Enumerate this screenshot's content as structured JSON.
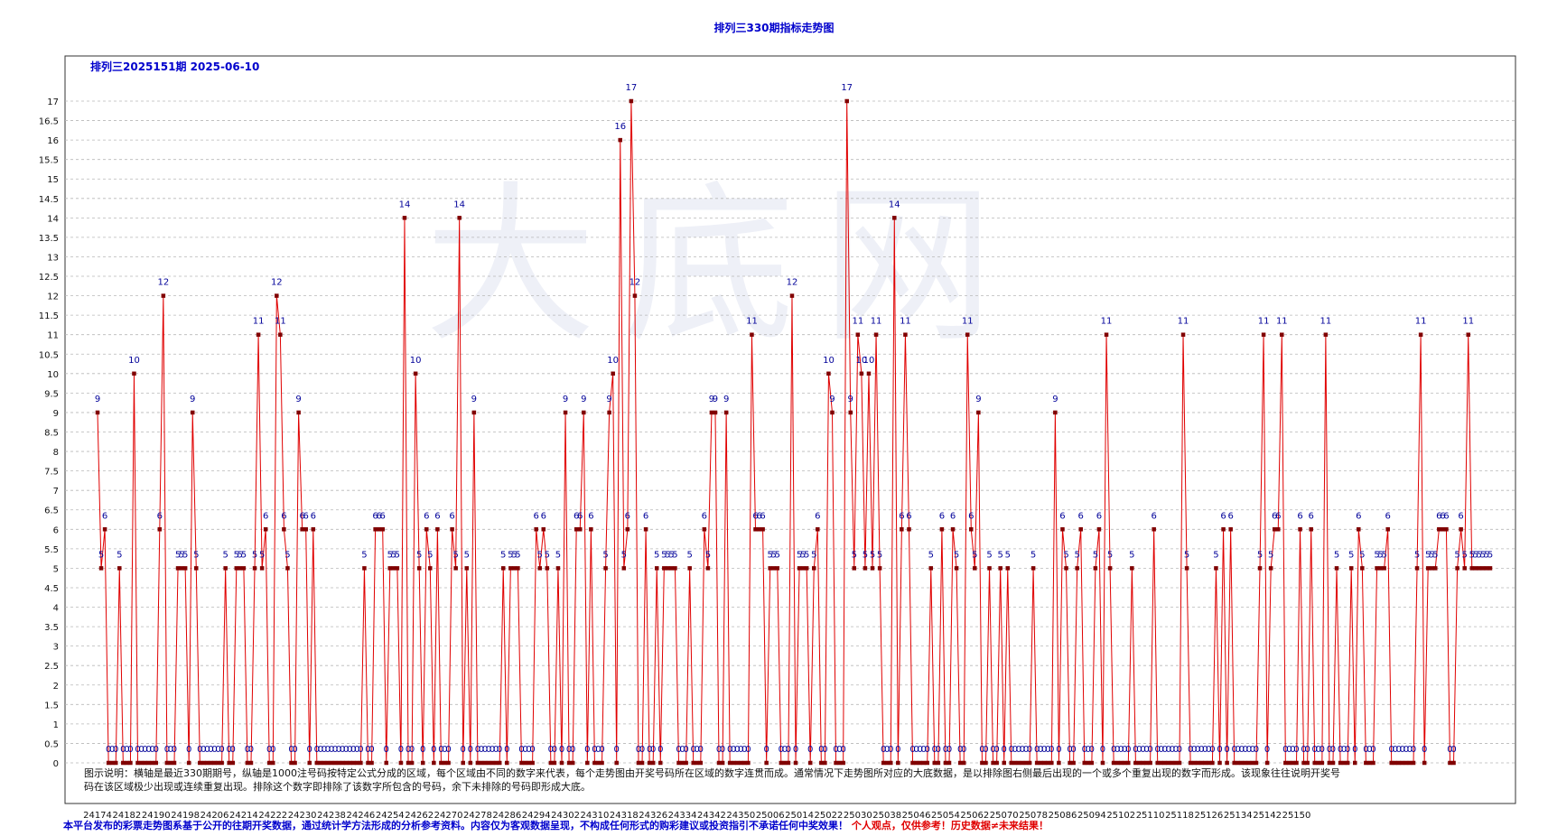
{
  "title": "排列三330期指标走势图",
  "subtitle": "排列三2025151期  2025-06-10",
  "watermark": "大底网",
  "note": "图示说明：横轴是最近330期期号，纵轴是1000注号码按特定公式分成的区域，每个区域由不同的数字来代表，每个走势图由开奖号码所在区域的数字连贯而成。通常情况下走势图所对应的大底数据，是以排除图右侧最后出现的一个或多个重复出现的数字而形成。该现象往往说明开奖号码在该区域极少出现或连续重复出现。排除这个数字即排除了该数字所包含的号码，余下未排除的号码即形成大底。",
  "disclaimer": {
    "main": "本平台发布的彩票走势图系基于公开的往期开奖数据，通过统计学方法形成的分析参考资料。内容仅为客观数据呈现，不构成任何形式的购彩建议或投资指引不承诺任何中奖效果！",
    "warning": "个人观点，仅供参考！历史数据≠未来结果！"
  },
  "colors": {
    "line": "#e00000",
    "marker": "#800000",
    "label": "#000099",
    "title": "#0000cc",
    "grid": "#b8b8b8"
  },
  "chart_data": {
    "type": "line",
    "title": "排列三330期指标走势图",
    "ylim": [
      0,
      17
    ],
    "ytick_step": 0.5,
    "grid": true,
    "xtick_labels": [
      "24174",
      "24182",
      "24190",
      "24198",
      "24206",
      "24214",
      "24222",
      "24230",
      "24238",
      "24246",
      "24254",
      "24262",
      "24270",
      "24278",
      "24286",
      "24294",
      "24302",
      "24310",
      "24318",
      "24326",
      "24334",
      "24342",
      "24350",
      "25006",
      "25014",
      "25022",
      "25030",
      "25038",
      "25046",
      "25054",
      "25062",
      "25070",
      "25078",
      "25086",
      "25094",
      "25102",
      "25110",
      "25118",
      "25126",
      "25134",
      "25142",
      "25150"
    ],
    "values": [
      9,
      5,
      6,
      0,
      0,
      0,
      5,
      0,
      0,
      0,
      10,
      0,
      0,
      0,
      0,
      0,
      0,
      6,
      12,
      0,
      0,
      0,
      5,
      5,
      5,
      0,
      9,
      5,
      0,
      0,
      0,
      0,
      0,
      0,
      0,
      5,
      0,
      0,
      5,
      5,
      5,
      0,
      0,
      5,
      11,
      5,
      6,
      0,
      0,
      12,
      11,
      6,
      5,
      0,
      0,
      9,
      6,
      6,
      0,
      6,
      0,
      0,
      0,
      0,
      0,
      0,
      0,
      0,
      0,
      0,
      0,
      0,
      0,
      5,
      0,
      0,
      6,
      6,
      6,
      0,
      5,
      5,
      5,
      0,
      14,
      0,
      0,
      10,
      5,
      0,
      6,
      5,
      0,
      6,
      0,
      0,
      0,
      6,
      5,
      14,
      0,
      5,
      0,
      9,
      0,
      0,
      0,
      0,
      0,
      0,
      0,
      5,
      0,
      5,
      5,
      5,
      0,
      0,
      0,
      0,
      6,
      5,
      6,
      5,
      0,
      0,
      5,
      0,
      9,
      0,
      0,
      6,
      6,
      9,
      0,
      6,
      0,
      0,
      0,
      5,
      9,
      10,
      0,
      16,
      5,
      6,
      17,
      12,
      0,
      0,
      6,
      0,
      0,
      5,
      0,
      5,
      5,
      5,
      5,
      0,
      0,
      0,
      5,
      0,
      0,
      0,
      6,
      5,
      9,
      9,
      0,
      0,
      9,
      0,
      0,
      0,
      0,
      0,
      0,
      11,
      6,
      6,
      6,
      0,
      5,
      5,
      5,
      0,
      0,
      0,
      12,
      0,
      5,
      5,
      5,
      0,
      5,
      6,
      0,
      0,
      10,
      9,
      0,
      0,
      0,
      17,
      9,
      5,
      11,
      10,
      5,
      10,
      5,
      11,
      5,
      0,
      0,
      0,
      14,
      0,
      6,
      11,
      6,
      0,
      0,
      0,
      0,
      0,
      5,
      0,
      0,
      6,
      0,
      0,
      6,
      5,
      0,
      0,
      11,
      6,
      5,
      9,
      0,
      0,
      5,
      0,
      0,
      5,
      0,
      5,
      0,
      0,
      0,
      0,
      0,
      0,
      5,
      0,
      0,
      0,
      0,
      0,
      9,
      0,
      6,
      5,
      0,
      0,
      5,
      6,
      0,
      0,
      0,
      5,
      6,
      0,
      11,
      5,
      0,
      0,
      0,
      0,
      0,
      5,
      0,
      0,
      0,
      0,
      0,
      6,
      0,
      0,
      0,
      0,
      0,
      0,
      0,
      11,
      5,
      0,
      0,
      0,
      0,
      0,
      0,
      0,
      5,
      0,
      6,
      0,
      6,
      0,
      0,
      0,
      0,
      0,
      0,
      0,
      5,
      11,
      0,
      5,
      6,
      6,
      11,
      0,
      0,
      0,
      0,
      6,
      0,
      0,
      6,
      0,
      0,
      0,
      11,
      0,
      0,
      5,
      0,
      0,
      0,
      5,
      0,
      6,
      5,
      0,
      0,
      0,
      5,
      5,
      5,
      6,
      0,
      0,
      0,
      0,
      0,
      0,
      0,
      5,
      11,
      0,
      5,
      5,
      5,
      6,
      6,
      6,
      0,
      0,
      5,
      6,
      5,
      11,
      5,
      5,
      5,
      5,
      5,
      5
    ]
  }
}
